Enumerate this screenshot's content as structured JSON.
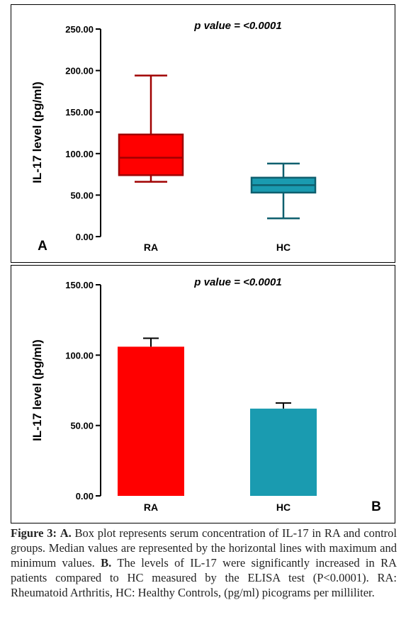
{
  "chart_data": [
    {
      "type": "box",
      "panel_label": "A",
      "annotation": "p value = <0.0001",
      "ylabel": "IL-17 level (pg/ml)",
      "xlabel": "",
      "ylim": [
        0,
        250
      ],
      "yticks": [
        "0.00",
        "50.00",
        "100.00",
        "150.00",
        "200.00",
        "250.00"
      ],
      "categories": [
        "RA",
        "HC"
      ],
      "boxes": [
        {
          "category": "RA",
          "min": 66,
          "q1": 74,
          "median": 95,
          "q3": 123,
          "max": 194,
          "color": "#ff0000"
        },
        {
          "category": "HC",
          "min": 22,
          "q1": 53,
          "median": 62,
          "q3": 71,
          "max": 88,
          "color": "#1a9bb0"
        }
      ]
    },
    {
      "type": "bar",
      "panel_label": "B",
      "annotation": "p value = <0.0001",
      "ylabel": "IL-17 level (pg/ml)",
      "xlabel": "",
      "ylim": [
        0,
        150
      ],
      "yticks": [
        "0.00",
        "50.00",
        "100.00",
        "150.00"
      ],
      "categories": [
        "RA",
        "HC"
      ],
      "values": [
        106,
        62
      ],
      "errors": [
        6,
        4
      ],
      "colors": [
        "#ff0000",
        "#1a9bb0"
      ]
    }
  ],
  "caption": {
    "label": "Figure 3:",
    "a_label": "A.",
    "a_text": "Box plot represents serum concentration of IL-17 in RA and control groups. Median values are represented by the horizontal lines with maximum and minimum values.",
    "b_label": "B.",
    "b_text": "The levels of IL-17 were significantly increased in RA patients compared to HC measured by the ELISA test (P<0.0001). RA: Rheumatoid Arthritis, HC: Healthy Controls, (pg/ml) picograms per milliliter."
  }
}
